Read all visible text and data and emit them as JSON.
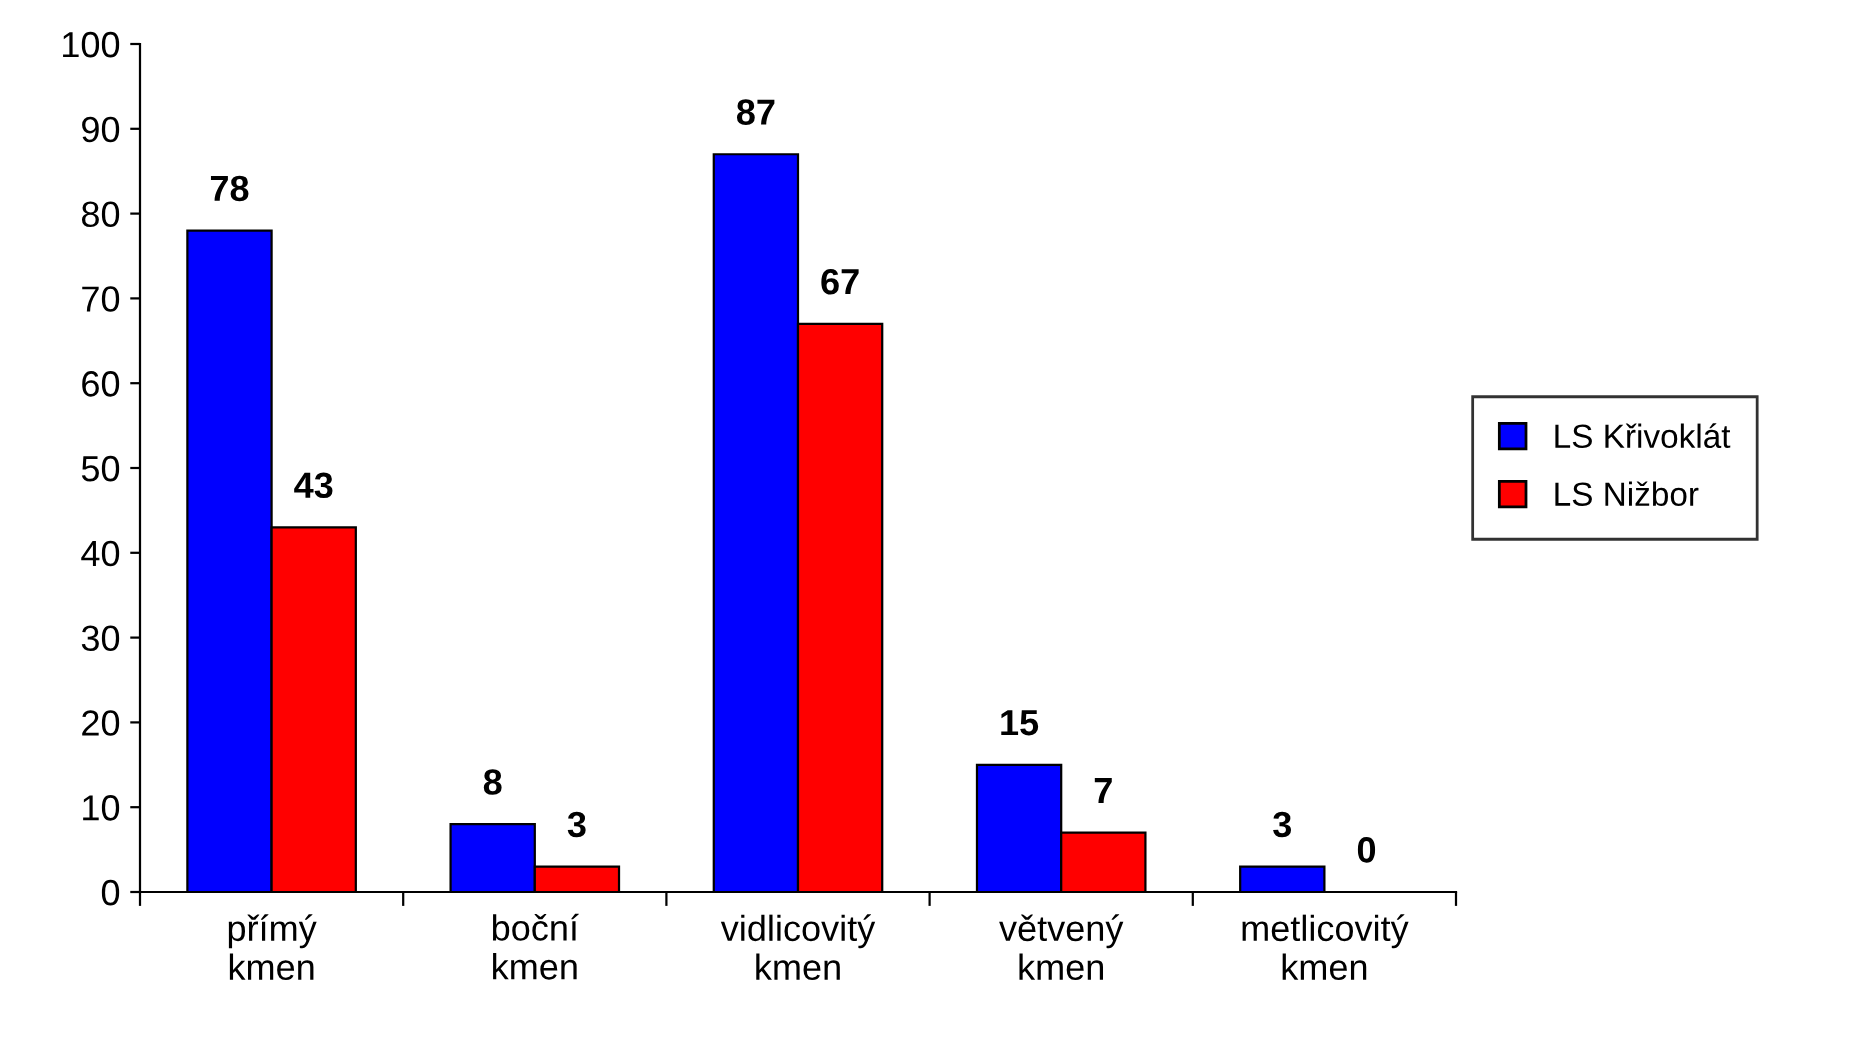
{
  "chart_data": {
    "type": "bar",
    "categories": [
      "přímý\nkmen",
      "boční\nkmen",
      "vidlicovitý\nkmen",
      "větvený\nkmen",
      "metlicovitý\nkmen"
    ],
    "series": [
      {
        "name": "LS Křivoklát",
        "color": "#0000ff",
        "values": [
          78,
          8,
          87,
          15,
          3
        ]
      },
      {
        "name": "LS Nižbor",
        "color": "#ff0000",
        "values": [
          43,
          3,
          67,
          7,
          0
        ]
      }
    ],
    "ylim": [
      0,
      100
    ],
    "yticks": [
      0,
      10,
      20,
      30,
      40,
      50,
      60,
      70,
      80,
      90,
      100
    ],
    "data_labels": true,
    "grid": false,
    "legend": "right"
  }
}
